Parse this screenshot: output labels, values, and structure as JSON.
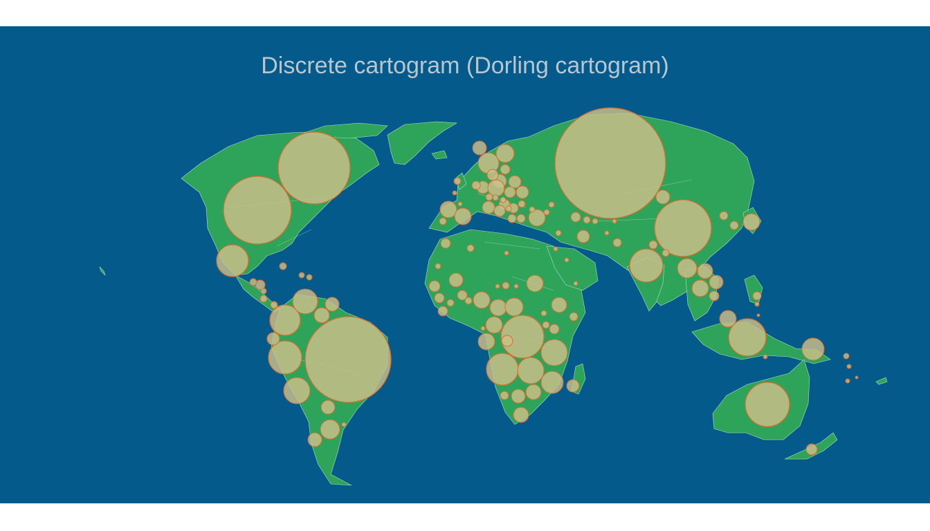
{
  "title": "Discrete cartogram (Dorling cartogram)",
  "colors": {
    "ocean": "#055a8c",
    "land": "#2ea45a",
    "border": "#b7dfc3",
    "circle_fill": "#cdbe8a",
    "circle_stroke": "#d0712e",
    "title": "#b7c6cf"
  },
  "chart_data": {
    "type": "map",
    "style": "dorling-cartogram",
    "circle_count": 150,
    "legend": "none"
  }
}
